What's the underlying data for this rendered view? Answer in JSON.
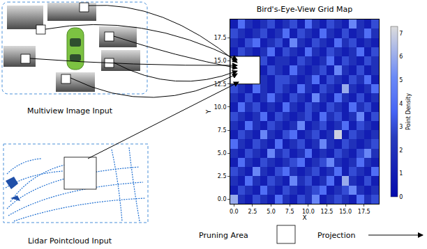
{
  "diagram": {
    "multiview_label": "Multiview Image Input",
    "lidar_label": "Lidar Pointcloud Input",
    "legend": {
      "pruning": "Pruning Area",
      "projection": "Projection"
    }
  },
  "chart_data": {
    "type": "heatmap",
    "title": "Bird's-Eye-View Grid Map",
    "x_label": "X",
    "y_label": "Y",
    "x": [
      0,
      1,
      2,
      3,
      4,
      5,
      6,
      7,
      8,
      9,
      10,
      11,
      12,
      13,
      14,
      15,
      16,
      17,
      18,
      19
    ],
    "y": [
      0,
      1,
      2,
      3,
      4,
      5,
      6,
      7,
      8,
      9,
      10,
      11,
      12,
      13,
      14,
      15,
      16,
      17,
      18,
      19
    ],
    "xlim": [
      -0.5,
      19.5
    ],
    "ylim": [
      -0.5,
      19.5
    ],
    "xticks": [
      {
        "value": 0,
        "label": "0.0"
      },
      {
        "value": 2.5,
        "label": "2.5"
      },
      {
        "value": 5,
        "label": "5.0"
      },
      {
        "value": 7.5,
        "label": "7.5"
      },
      {
        "value": 10,
        "label": "10.0"
      },
      {
        "value": 12.5,
        "label": "12.5"
      },
      {
        "value": 15,
        "label": "15.0"
      },
      {
        "value": 17.5,
        "label": "17.5"
      }
    ],
    "yticks": [
      {
        "value": 0,
        "label": "0.0"
      },
      {
        "value": 2.5,
        "label": "2.5"
      },
      {
        "value": 5,
        "label": "5.0"
      },
      {
        "value": 7.5,
        "label": "7.5"
      },
      {
        "value": 10,
        "label": "10.0"
      },
      {
        "value": 12.5,
        "label": "12.5"
      },
      {
        "value": 15,
        "label": "15.0"
      },
      {
        "value": 17.5,
        "label": "17.5"
      }
    ],
    "colorbar_title": "Point Density",
    "colorbar_range": [
      0,
      7.3
    ],
    "colorbar_ticks": [
      0,
      1,
      2,
      3,
      4,
      5,
      6,
      7
    ],
    "color": "Blues",
    "pruning_area": {
      "x": [
        -0.5,
        3.5
      ],
      "y": [
        12.5,
        15.5
      ]
    },
    "cells": [
      [
        6,
        2,
        1,
        3,
        2,
        1,
        4,
        2,
        1,
        3,
        2,
        5,
        1,
        2,
        3,
        2,
        1,
        4,
        2,
        3
      ],
      [
        1,
        3,
        2,
        1,
        4,
        2,
        1,
        3,
        2,
        1,
        2,
        3,
        4,
        1,
        2,
        3,
        5,
        2,
        1,
        2
      ],
      [
        2,
        1,
        4,
        2,
        1,
        3,
        2,
        1,
        5,
        2,
        3,
        1,
        2,
        4,
        1,
        6,
        2,
        1,
        3,
        1
      ],
      [
        3,
        2,
        1,
        5,
        2,
        1,
        3,
        4,
        2,
        1,
        2,
        3,
        1,
        2,
        4,
        1,
        3,
        2,
        1,
        4
      ],
      [
        1,
        4,
        2,
        1,
        3,
        2,
        1,
        2,
        3,
        4,
        1,
        2,
        3,
        5,
        2,
        1,
        2,
        4,
        2,
        1
      ],
      [
        2,
        1,
        3,
        2,
        1,
        5,
        2,
        3,
        1,
        2,
        4,
        1,
        2,
        1,
        3,
        2,
        1,
        3,
        5,
        2
      ],
      [
        4,
        2,
        1,
        3,
        2,
        1,
        4,
        1,
        2,
        3,
        1,
        2,
        5,
        2,
        1,
        3,
        2,
        1,
        2,
        3
      ],
      [
        1,
        3,
        2,
        1,
        5,
        2,
        1,
        3,
        4,
        1,
        2,
        3,
        1,
        2,
        7,
        1,
        3,
        2,
        1,
        2
      ],
      [
        2,
        1,
        4,
        2,
        1,
        3,
        2,
        1,
        2,
        5,
        1,
        2,
        3,
        1,
        2,
        4,
        1,
        3,
        2,
        1
      ],
      [
        3,
        2,
        1,
        2,
        4,
        1,
        3,
        2,
        1,
        2,
        3,
        1,
        4,
        2,
        3,
        1,
        2,
        5,
        1,
        3
      ],
      [
        1,
        4,
        2,
        3,
        1,
        2,
        1,
        4,
        2,
        1,
        3,
        2,
        1,
        3,
        2,
        1,
        4,
        2,
        3,
        1
      ],
      [
        2,
        1,
        3,
        1,
        2,
        4,
        2,
        1,
        3,
        2,
        1,
        5,
        2,
        1,
        4,
        2,
        1,
        3,
        1,
        2
      ],
      [
        3,
        2,
        1,
        4,
        2,
        1,
        3,
        2,
        1,
        4,
        2,
        1,
        3,
        2,
        1,
        6,
        2,
        1,
        2,
        4
      ],
      [
        null,
        null,
        null,
        null,
        2,
        1,
        3,
        3,
        2,
        1,
        2,
        4,
        1,
        3,
        2,
        1,
        3,
        2,
        4,
        1
      ],
      [
        null,
        null,
        null,
        null,
        1,
        3,
        2,
        1,
        4,
        2,
        1,
        2,
        3,
        1,
        5,
        2,
        1,
        3,
        1,
        2
      ],
      [
        null,
        null,
        null,
        null,
        3,
        1,
        2,
        2,
        1,
        3,
        2,
        1,
        2,
        4,
        1,
        3,
        2,
        1,
        3,
        2
      ],
      [
        1,
        3,
        2,
        1,
        2,
        4,
        1,
        3,
        2,
        1,
        4,
        2,
        1,
        3,
        2,
        1,
        2,
        4,
        1,
        3
      ],
      [
        2,
        1,
        3,
        4,
        1,
        2,
        3,
        1,
        5,
        2,
        1,
        3,
        2,
        1,
        4,
        2,
        3,
        1,
        2,
        1
      ],
      [
        3,
        2,
        1,
        2,
        3,
        1,
        2,
        4,
        1,
        3,
        2,
        1,
        4,
        2,
        1,
        3,
        1,
        2,
        4,
        2
      ],
      [
        1,
        4,
        2,
        1,
        2,
        3,
        1,
        2,
        3,
        1,
        4,
        2,
        1,
        3,
        2,
        1,
        5,
        2,
        1,
        3
      ]
    ]
  }
}
